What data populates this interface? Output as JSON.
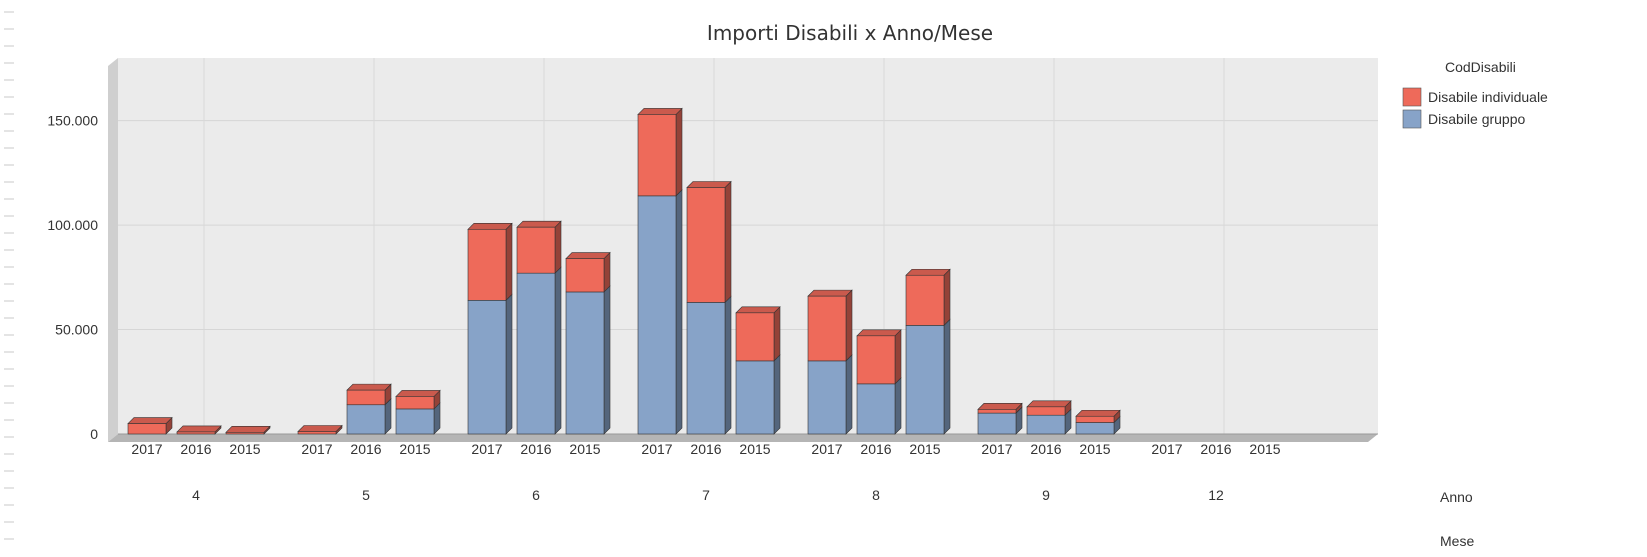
{
  "chart_data": {
    "type": "bar",
    "stacked": true,
    "title": "Importi Disabili x Anno/Mese",
    "legend": {
      "title": "CodDisabili",
      "placement": "top-right"
    },
    "ylim": [
      0,
      180000
    ],
    "y_ticks": [
      {
        "value": 0,
        "label": "0"
      },
      {
        "value": 50000,
        "label": "50.000"
      },
      {
        "value": 100000,
        "label": "100.000"
      },
      {
        "value": 150000,
        "label": "150.000"
      }
    ],
    "x_level_names": {
      "inner": "Anno",
      "outer": "Mese"
    },
    "groups": [
      {
        "label": "4",
        "years": [
          "2017",
          "2016",
          "2015"
        ],
        "present": [
          true,
          true,
          true
        ]
      },
      {
        "label": "5",
        "years": [
          "2017",
          "2016",
          "2015"
        ],
        "present": [
          true,
          true,
          true
        ]
      },
      {
        "label": "6",
        "years": [
          "2017",
          "2016",
          "2015"
        ],
        "present": [
          true,
          true,
          true
        ]
      },
      {
        "label": "7",
        "years": [
          "2017",
          "2016",
          "2015"
        ],
        "present": [
          true,
          true,
          true
        ]
      },
      {
        "label": "8",
        "years": [
          "2017",
          "2016",
          "2015"
        ],
        "present": [
          true,
          true,
          true
        ]
      },
      {
        "label": "9",
        "years": [
          "2017",
          "2016",
          "2015"
        ],
        "present": [
          true,
          true,
          true
        ]
      },
      {
        "label": "12",
        "years": [
          "2017",
          "2016",
          "2015"
        ],
        "present": [
          false,
          false,
          false
        ]
      }
    ],
    "series": [
      {
        "name": "Disabile gruppo",
        "color": "#87a3c8",
        "values": [
          [
            0,
            0,
            0
          ],
          [
            0,
            14000,
            12000
          ],
          [
            64000,
            77000,
            68000
          ],
          [
            114000,
            63000,
            35000
          ],
          [
            35000,
            24000,
            52000
          ],
          [
            10000,
            9000,
            5500
          ],
          [
            0,
            0,
            0
          ]
        ]
      },
      {
        "name": "Disabile individuale",
        "color": "#ee6a5a",
        "values": [
          [
            5000,
            1000,
            800
          ],
          [
            1200,
            7000,
            6000
          ],
          [
            34000,
            22000,
            16000
          ],
          [
            39000,
            55000,
            23000
          ],
          [
            31000,
            23000,
            24000
          ],
          [
            1800,
            4000,
            3000
          ],
          [
            0,
            0,
            0
          ]
        ]
      }
    ],
    "grid": true
  }
}
